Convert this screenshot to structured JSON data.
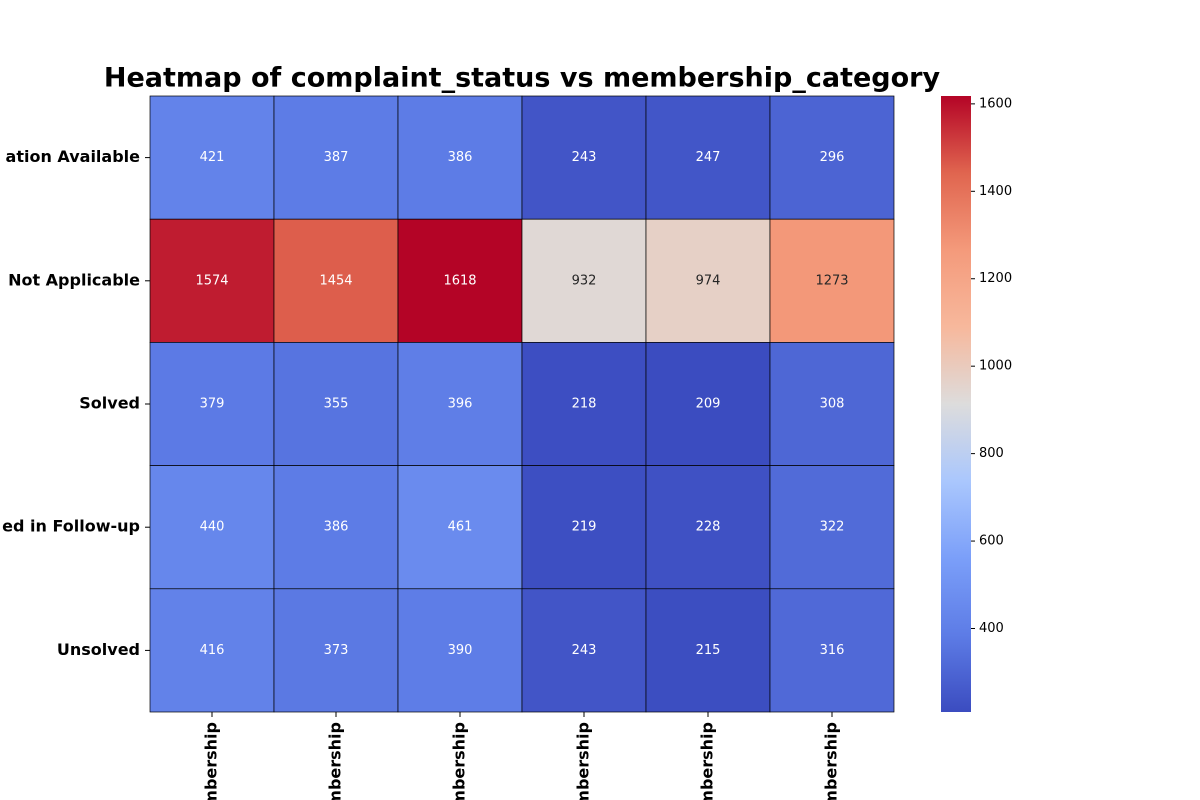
{
  "chart_data": {
    "type": "heatmap",
    "title": "Heatmap of complaint_status vs membership_category",
    "x_categories": [
      "mbership",
      "mbership",
      "mbership",
      "mbership",
      "mbership",
      "mbership"
    ],
    "y_categories": [
      "ation Available",
      "Not Applicable",
      "Solved",
      "ed in Follow-up",
      "Unsolved"
    ],
    "values": [
      [
        421,
        387,
        386,
        243,
        247,
        296
      ],
      [
        1574,
        1454,
        1618,
        932,
        974,
        1273
      ],
      [
        379,
        355,
        396,
        218,
        209,
        308
      ],
      [
        440,
        386,
        461,
        219,
        228,
        322
      ],
      [
        416,
        373,
        390,
        243,
        215,
        316
      ]
    ],
    "colormap": "coolwarm",
    "clim": [
      209,
      1618
    ],
    "cticks": [
      400,
      600,
      800,
      1000,
      1200,
      1400,
      1600
    ]
  }
}
